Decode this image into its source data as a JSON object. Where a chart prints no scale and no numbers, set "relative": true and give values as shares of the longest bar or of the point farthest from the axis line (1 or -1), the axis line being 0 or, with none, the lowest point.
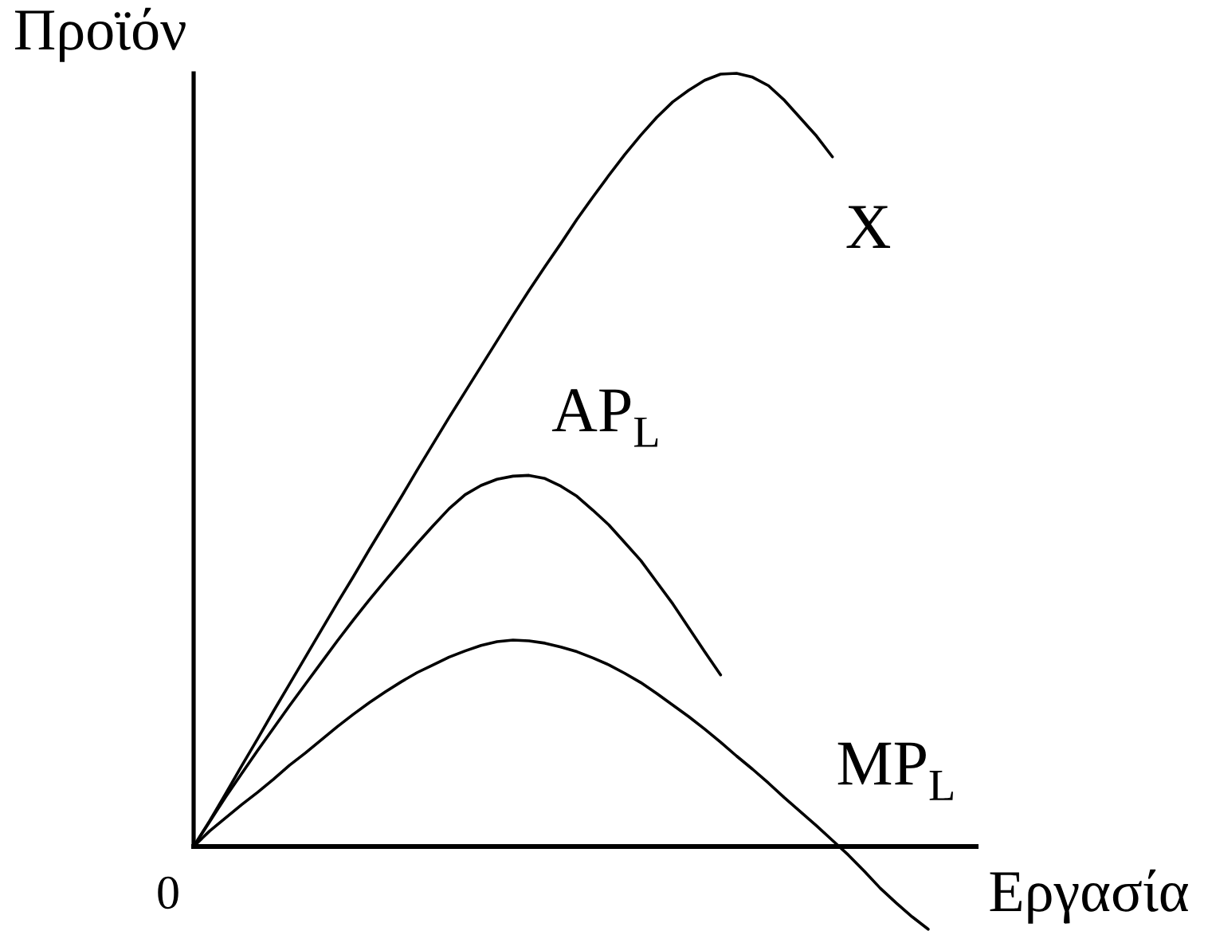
{
  "chart_data": {
    "type": "line",
    "relative": true,
    "xlabel": "Εργασία",
    "ylabel": "Προϊόν",
    "annotations": [
      "0"
    ],
    "categories": [
      null,
      null,
      null,
      null,
      null,
      null,
      null,
      null,
      null,
      null,
      null,
      null,
      null,
      null,
      null,
      null,
      null,
      null,
      null,
      null,
      null,
      null,
      null,
      null,
      null,
      null,
      null,
      null,
      null,
      null,
      null,
      null,
      null,
      null,
      null,
      null,
      null,
      null,
      null,
      null,
      null,
      null,
      null,
      null,
      null,
      null,
      null,
      null,
      null,
      null
    ],
    "series": [
      {
        "name": "X",
        "color": "#000000",
        "values": [
          0,
          0.033,
          0.068,
          0.104,
          0.139,
          0.175,
          0.21,
          0.245,
          0.28,
          0.315,
          0.349,
          0.384,
          0.418,
          0.452,
          0.487,
          0.521,
          0.555,
          0.588,
          0.621,
          0.654,
          0.687,
          0.719,
          0.75,
          0.78,
          0.811,
          0.84,
          0.868,
          0.895,
          0.92,
          0.943,
          0.963,
          0.978,
          0.991,
          0.999,
          1,
          0.995,
          0.984,
          0.965,
          0.942,
          0.919,
          0.892,
          null,
          null,
          null,
          null,
          null,
          null,
          null,
          null,
          null
        ]
      },
      {
        "name": "AP$_{L}$",
        "color": "#000000",
        "values": [
          0,
          0.032,
          0.064,
          0.094,
          0.124,
          0.153,
          0.182,
          0.21,
          0.238,
          0.266,
          0.293,
          0.319,
          0.344,
          0.368,
          0.392,
          0.415,
          0.437,
          0.455,
          0.467,
          0.475,
          0.479,
          0.48,
          0.476,
          0.466,
          0.453,
          0.435,
          0.416,
          0.393,
          0.37,
          0.342,
          0.314,
          0.283,
          0.252,
          0.222,
          null,
          null,
          null,
          null,
          null,
          null,
          null,
          null,
          null,
          null,
          null,
          null,
          null,
          null,
          null,
          null
        ]
      },
      {
        "name": "MP$_{L}$",
        "color": "#000000",
        "values": [
          0,
          0.02,
          0.037,
          0.054,
          0.07,
          0.087,
          0.105,
          0.121,
          0.138,
          0.155,
          0.171,
          0.186,
          0.2,
          0.213,
          0.225,
          0.235,
          0.245,
          0.253,
          0.26,
          0.265,
          0.267,
          0.266,
          0.263,
          0.258,
          0.252,
          0.244,
          0.235,
          0.224,
          0.212,
          0.198,
          0.183,
          0.168,
          0.152,
          0.135,
          0.117,
          0.1,
          0.082,
          0.063,
          0.045,
          0.027,
          0.008,
          -0.011,
          -0.032,
          -0.054,
          -0.073,
          -0.091,
          -0.107,
          null,
          null,
          null
        ]
      }
    ]
  }
}
